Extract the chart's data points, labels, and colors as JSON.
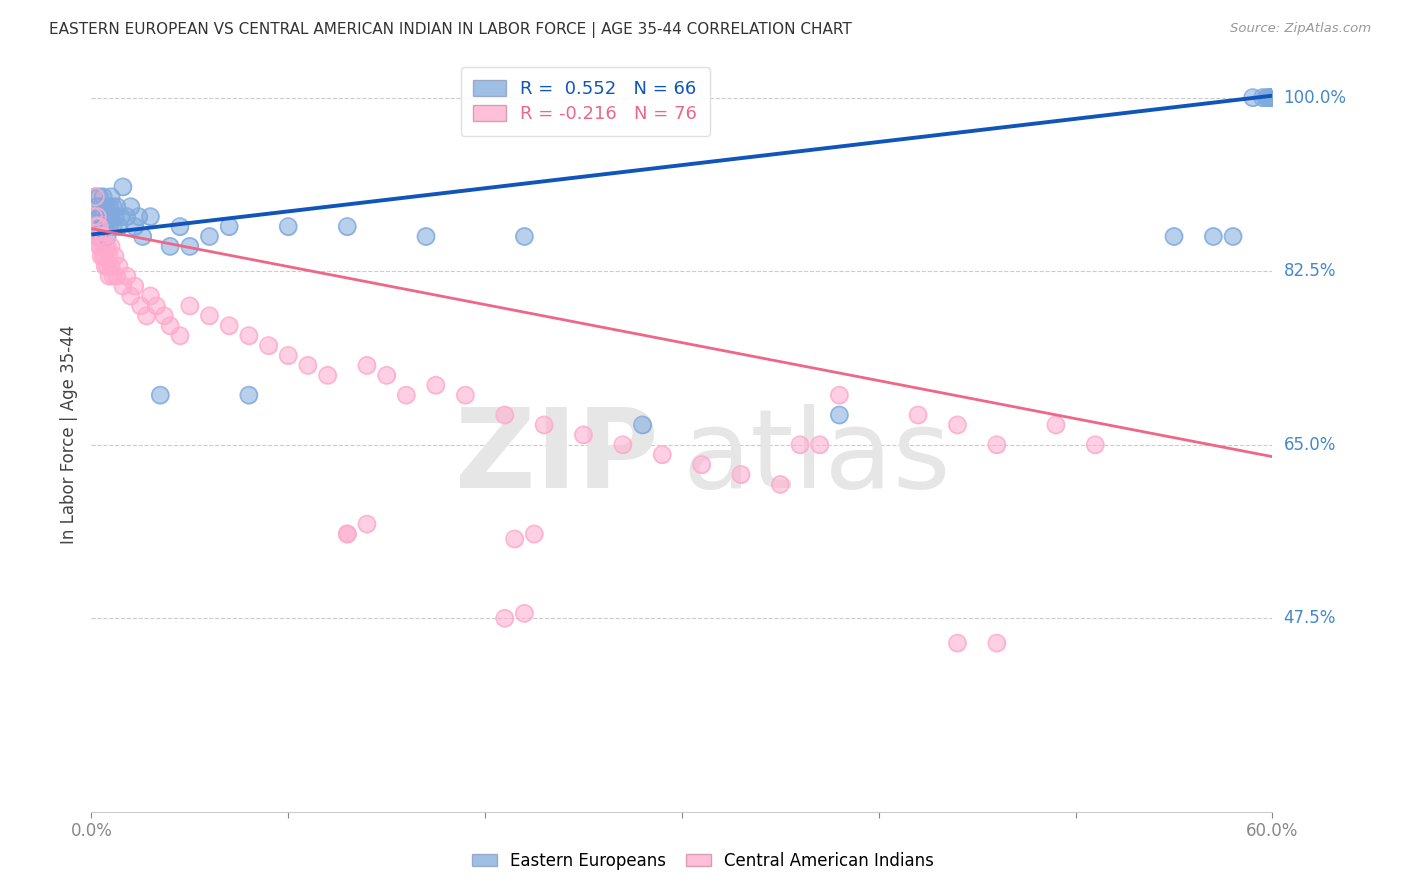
{
  "title": "EASTERN EUROPEAN VS CENTRAL AMERICAN INDIAN IN LABOR FORCE | AGE 35-44 CORRELATION CHART",
  "source": "Source: ZipAtlas.com",
  "ylabel": "In Labor Force | Age 35-44",
  "xlim": [
    0.0,
    0.6
  ],
  "ylim": [
    0.28,
    1.04
  ],
  "blue_R": 0.552,
  "blue_N": 66,
  "pink_R": -0.216,
  "pink_N": 76,
  "blue_color": "#80AADD",
  "pink_color": "#FFAACC",
  "blue_line_color": "#1155BB",
  "pink_line_color": "#EE6688",
  "legend_blue_label": "Eastern Europeans",
  "legend_pink_label": "Central American Indians",
  "ytick_positions": [
    1.0,
    0.825,
    0.65,
    0.475
  ],
  "ytick_labels": [
    "100.0%",
    "82.5%",
    "65.0%",
    "47.5%"
  ],
  "blue_line_x0": 0.0,
  "blue_line_y0": 0.862,
  "blue_line_x1": 0.6,
  "blue_line_y1": 1.002,
  "pink_line_x0": 0.0,
  "pink_line_y0": 0.868,
  "pink_line_x1": 0.6,
  "pink_line_y1": 0.638,
  "blue_x": [
    0.002,
    0.002,
    0.003,
    0.003,
    0.004,
    0.004,
    0.004,
    0.005,
    0.005,
    0.005,
    0.006,
    0.006,
    0.006,
    0.007,
    0.007,
    0.008,
    0.008,
    0.009,
    0.009,
    0.01,
    0.01,
    0.011,
    0.011,
    0.012,
    0.013,
    0.014,
    0.015,
    0.016,
    0.018,
    0.02,
    0.022,
    0.024,
    0.026,
    0.03,
    0.035,
    0.04,
    0.045,
    0.05,
    0.06,
    0.07,
    0.08,
    0.1,
    0.13,
    0.17,
    0.22,
    0.28,
    0.38,
    0.55,
    0.57,
    0.58,
    0.59,
    0.595,
    0.597,
    0.598,
    0.599,
    0.6,
    0.6,
    0.6,
    0.6,
    0.6,
    0.6,
    0.6,
    0.6,
    0.6,
    0.6,
    0.6
  ],
  "blue_y": [
    0.9,
    0.87,
    0.89,
    0.86,
    0.9,
    0.88,
    0.87,
    0.89,
    0.88,
    0.86,
    0.9,
    0.88,
    0.87,
    0.89,
    0.87,
    0.88,
    0.86,
    0.89,
    0.87,
    0.9,
    0.88,
    0.89,
    0.87,
    0.88,
    0.89,
    0.87,
    0.88,
    0.91,
    0.88,
    0.89,
    0.87,
    0.88,
    0.86,
    0.88,
    0.7,
    0.85,
    0.87,
    0.85,
    0.86,
    0.87,
    0.7,
    0.87,
    0.87,
    0.86,
    0.86,
    0.67,
    0.68,
    0.86,
    0.86,
    0.86,
    1.0,
    1.0,
    1.0,
    1.0,
    1.0,
    1.0,
    1.0,
    1.0,
    1.0,
    1.0,
    1.0,
    1.0,
    1.0,
    1.0,
    1.0,
    1.0
  ],
  "pink_x": [
    0.001,
    0.002,
    0.002,
    0.003,
    0.003,
    0.003,
    0.004,
    0.004,
    0.005,
    0.005,
    0.005,
    0.006,
    0.006,
    0.006,
    0.007,
    0.007,
    0.007,
    0.008,
    0.008,
    0.009,
    0.009,
    0.01,
    0.01,
    0.011,
    0.012,
    0.013,
    0.014,
    0.016,
    0.018,
    0.02,
    0.022,
    0.025,
    0.028,
    0.03,
    0.033,
    0.037,
    0.04,
    0.045,
    0.05,
    0.06,
    0.07,
    0.08,
    0.09,
    0.1,
    0.11,
    0.12,
    0.13,
    0.14,
    0.15,
    0.16,
    0.175,
    0.19,
    0.21,
    0.23,
    0.25,
    0.27,
    0.29,
    0.31,
    0.33,
    0.35,
    0.38,
    0.42,
    0.44,
    0.46,
    0.49,
    0.51,
    0.13,
    0.14,
    0.21,
    0.22,
    0.215,
    0.225,
    0.36,
    0.37,
    0.44,
    0.46
  ],
  "pink_y": [
    0.88,
    0.9,
    0.87,
    0.88,
    0.86,
    0.87,
    0.85,
    0.87,
    0.86,
    0.84,
    0.85,
    0.84,
    0.86,
    0.85,
    0.83,
    0.85,
    0.84,
    0.83,
    0.85,
    0.84,
    0.82,
    0.83,
    0.85,
    0.82,
    0.84,
    0.82,
    0.83,
    0.81,
    0.82,
    0.8,
    0.81,
    0.79,
    0.78,
    0.8,
    0.79,
    0.78,
    0.77,
    0.76,
    0.79,
    0.78,
    0.77,
    0.76,
    0.75,
    0.74,
    0.73,
    0.72,
    0.56,
    0.73,
    0.72,
    0.7,
    0.71,
    0.7,
    0.68,
    0.67,
    0.66,
    0.65,
    0.64,
    0.63,
    0.62,
    0.61,
    0.7,
    0.68,
    0.67,
    0.65,
    0.67,
    0.65,
    0.56,
    0.57,
    0.475,
    0.48,
    0.555,
    0.56,
    0.65,
    0.65,
    0.45,
    0.45
  ]
}
